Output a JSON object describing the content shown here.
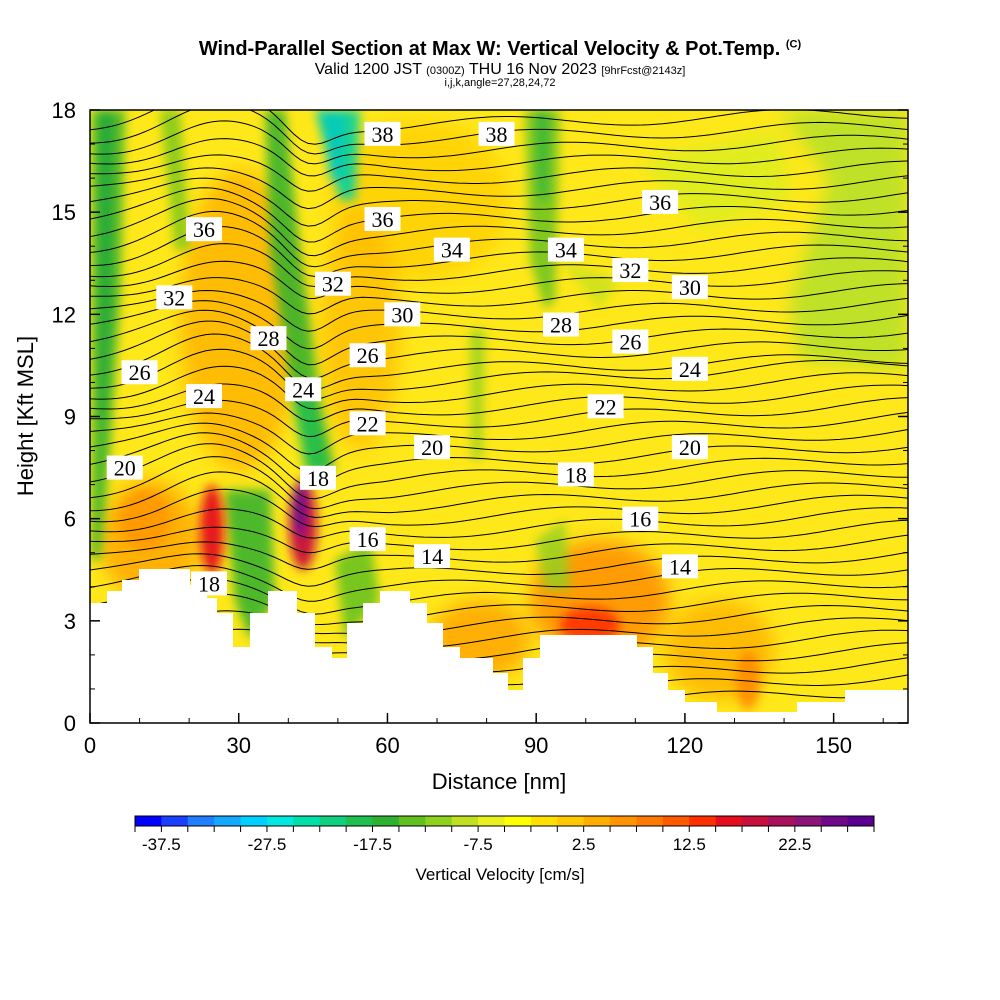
{
  "header": {
    "title_main": "Wind-Parallel Section at Max W: Vertical Velocity & Pot.Temp.",
    "title_tag": "(C)",
    "valid_prefix": "Valid 1200 JST",
    "valid_utc": "(0300Z)",
    "valid_date": "THU 16 Nov 2023",
    "valid_fcst": "[9hrFcst@2143z]",
    "grid_info": "i,j,k,angle=27,28,24,72"
  },
  "chart_data": {
    "type": "heatmap",
    "xlabel": "Distance [nm]",
    "ylabel": "Height [Kft MSL]",
    "xlim": [
      0,
      165
    ],
    "ylim": [
      0,
      18
    ],
    "x_ticks": [
      0,
      30,
      60,
      90,
      120,
      150
    ],
    "y_ticks": [
      0,
      3,
      6,
      9,
      12,
      15,
      18
    ],
    "colorbar": {
      "label": "Vertical Velocity [cm/s]",
      "tick_labels": [
        "-37.5",
        "-27.5",
        "-17.5",
        "-7.5",
        "2.5",
        "12.5",
        "22.5"
      ],
      "min": -40,
      "max": 30,
      "step": 2.5,
      "colors": [
        "#0000ff",
        "#1a40ff",
        "#1f7fff",
        "#14a8ff",
        "#00d0ff",
        "#00e8e0",
        "#00e0a8",
        "#10d080",
        "#20c050",
        "#30b030",
        "#60c020",
        "#90d020",
        "#c0e020",
        "#e8f020",
        "#ffff00",
        "#ffe000",
        "#ffc800",
        "#ffae00",
        "#ff9400",
        "#ff7a00",
        "#ff5a00",
        "#ff3000",
        "#e60e1e",
        "#c8103c",
        "#a8125a",
        "#8a1478",
        "#6e0a8a",
        "#5a0090"
      ]
    },
    "theta_contour_labels": [
      {
        "label": "38",
        "x": 59,
        "y": 17.3
      },
      {
        "label": "38",
        "x": 82,
        "y": 17.3
      },
      {
        "label": "36",
        "x": 23,
        "y": 14.5
      },
      {
        "label": "36",
        "x": 59,
        "y": 14.8
      },
      {
        "label": "36",
        "x": 115,
        "y": 15.3
      },
      {
        "label": "34",
        "x": 73,
        "y": 13.9
      },
      {
        "label": "34",
        "x": 96,
        "y": 13.9
      },
      {
        "label": "32",
        "x": 17,
        "y": 12.5
      },
      {
        "label": "32",
        "x": 49,
        "y": 12.9
      },
      {
        "label": "32",
        "x": 109,
        "y": 13.3
      },
      {
        "label": "30",
        "x": 63,
        "y": 12.0
      },
      {
        "label": "30",
        "x": 121,
        "y": 12.8
      },
      {
        "label": "28",
        "x": 36,
        "y": 11.3
      },
      {
        "label": "28",
        "x": 95,
        "y": 11.7
      },
      {
        "label": "26",
        "x": 10,
        "y": 10.3
      },
      {
        "label": "26",
        "x": 56,
        "y": 10.8
      },
      {
        "label": "26",
        "x": 109,
        "y": 11.2
      },
      {
        "label": "24",
        "x": 23,
        "y": 9.6
      },
      {
        "label": "24",
        "x": 43,
        "y": 9.8
      },
      {
        "label": "24",
        "x": 121,
        "y": 10.4
      },
      {
        "label": "22",
        "x": 56,
        "y": 8.8
      },
      {
        "label": "22",
        "x": 104,
        "y": 9.3
      },
      {
        "label": "20",
        "x": 7,
        "y": 7.5
      },
      {
        "label": "20",
        "x": 69,
        "y": 8.1
      },
      {
        "label": "20",
        "x": 121,
        "y": 8.1
      },
      {
        "label": "18",
        "x": 46,
        "y": 7.2
      },
      {
        "label": "18",
        "x": 98,
        "y": 7.3
      },
      {
        "label": "18",
        "x": 24,
        "y": 4.1
      },
      {
        "label": "16",
        "x": 56,
        "y": 5.4
      },
      {
        "label": "16",
        "x": 111,
        "y": 6.0
      },
      {
        "label": "14",
        "x": 69,
        "y": 4.9
      },
      {
        "label": "14",
        "x": 119,
        "y": 4.6
      }
    ]
  }
}
